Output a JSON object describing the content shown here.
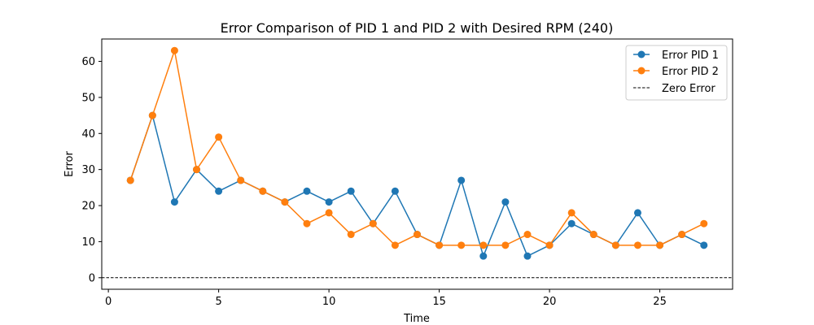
{
  "chart_data": {
    "type": "line",
    "title": "Error Comparison of PID 1 and PID 2 with Desired RPM (240)",
    "xlabel": "Time",
    "ylabel": "Error",
    "xlim": [
      -0.3,
      28.3
    ],
    "ylim": [
      -3.2,
      66.2
    ],
    "xticks": [
      0,
      5,
      10,
      15,
      20,
      25
    ],
    "yticks": [
      0,
      10,
      20,
      30,
      40,
      50,
      60
    ],
    "grid": false,
    "legend_position": "top-right",
    "x": [
      1,
      2,
      3,
      4,
      5,
      6,
      7,
      8,
      9,
      10,
      11,
      12,
      13,
      14,
      15,
      16,
      17,
      18,
      19,
      20,
      21,
      22,
      23,
      24,
      25,
      26,
      27
    ],
    "series": [
      {
        "name": "Error PID 1",
        "color": "#1f77b4",
        "marker": "circle",
        "values": [
          27,
          45,
          21,
          30,
          24,
          27,
          24,
          21,
          24,
          21,
          24,
          15,
          24,
          12,
          9,
          27,
          6,
          21,
          6,
          9,
          15,
          12,
          9,
          18,
          9,
          12,
          9
        ]
      },
      {
        "name": "Error PID 2",
        "color": "#ff7f0e",
        "marker": "circle",
        "values": [
          27,
          45,
          63,
          30,
          39,
          27,
          24,
          21,
          15,
          18,
          12,
          15,
          9,
          12,
          9,
          9,
          9,
          9,
          12,
          9,
          18,
          12,
          9,
          9,
          9,
          12,
          15
        ]
      }
    ],
    "reference_line": {
      "name": "Zero Error",
      "y": 0,
      "color": "#000000",
      "style": "dashed"
    }
  }
}
